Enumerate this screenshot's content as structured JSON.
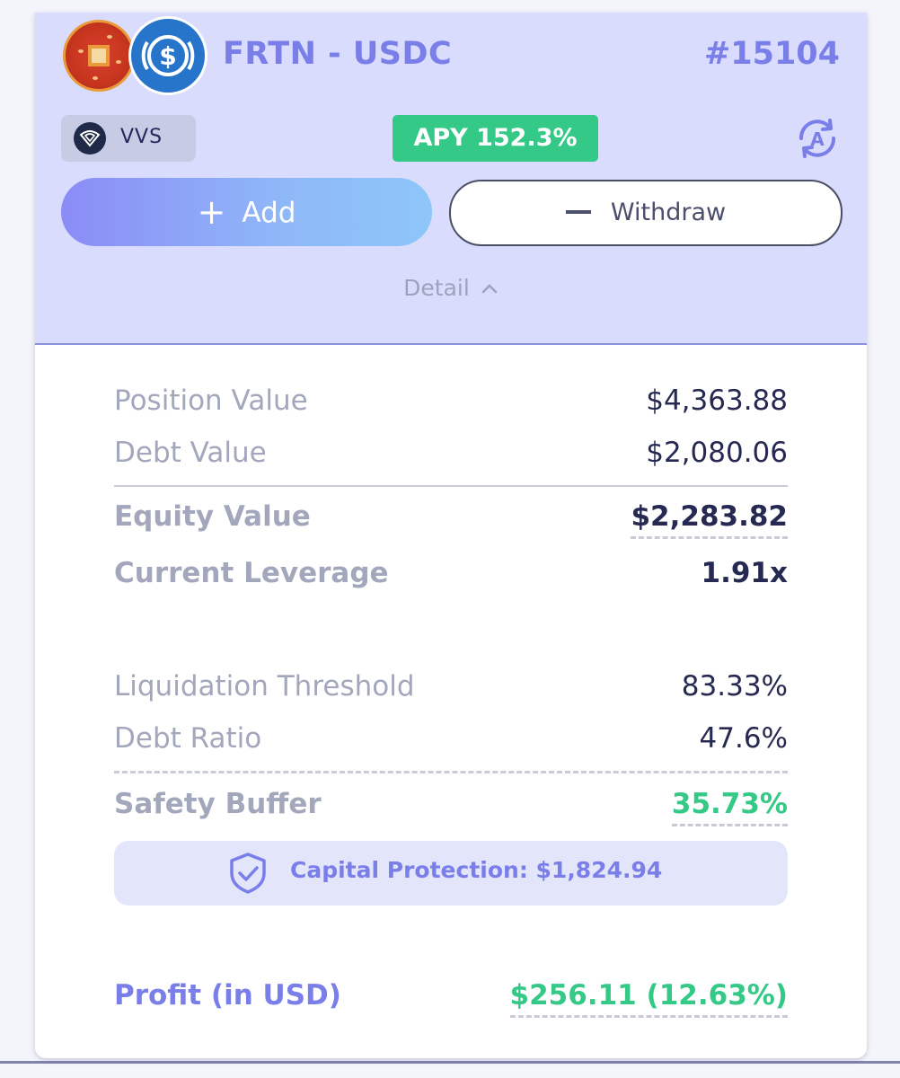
{
  "position": {
    "pair": "FRTN - USDC",
    "id": "#15104",
    "tokens": [
      "FRTN",
      "USDC"
    ],
    "dex": "VVS",
    "apy_label": "APY 152.3%"
  },
  "actions": {
    "add_label": "Add",
    "withdraw_label": "Withdraw",
    "detail_label": "Detail"
  },
  "details": {
    "position_value": {
      "label": "Position Value",
      "value": "$4,363.88"
    },
    "debt_value": {
      "label": "Debt Value",
      "value": "$2,080.06"
    },
    "equity_value": {
      "label": "Equity Value",
      "value": "$2,283.82"
    },
    "current_leverage": {
      "label": "Current Leverage",
      "value": "1.91x"
    },
    "liquidation_threshold": {
      "label": "Liquidation Threshold",
      "value": "83.33%"
    },
    "debt_ratio": {
      "label": "Debt Ratio",
      "value": "47.6%"
    },
    "safety_buffer": {
      "label": "Safety Buffer",
      "value": "35.73%"
    },
    "capital_protection": "Capital Protection: $1,824.94",
    "profit": {
      "label": "Profit (in USD)",
      "value": "$256.11 (12.63%)"
    }
  },
  "colors": {
    "header_bg": "#d9dcfc",
    "accent": "#7a7ee9",
    "positive": "#34c987",
    "text_dark": "#262a52",
    "text_muted": "#a3a7bc"
  },
  "icons": [
    "frtn-token-icon",
    "usdc-token-icon",
    "vvs-logo-icon",
    "auto-compound-icon",
    "plus-icon",
    "minus-icon",
    "chevron-up-icon",
    "shield-check-icon"
  ]
}
